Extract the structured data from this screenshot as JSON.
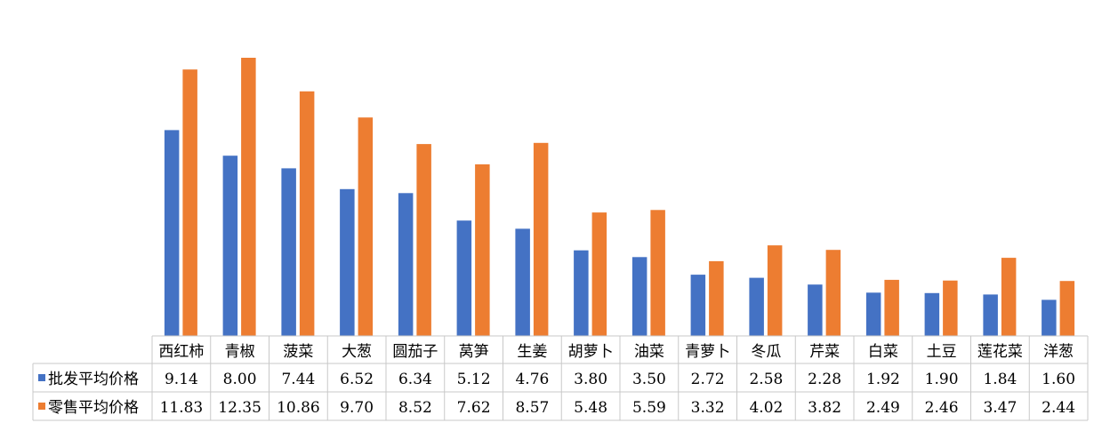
{
  "chart_data": {
    "type": "bar",
    "title": "",
    "xlabel": "",
    "ylabel": "",
    "ylim": [
      0,
      12.35
    ],
    "grid": false,
    "legend": "table-left",
    "categories": [
      "西红柿",
      "青椒",
      "菠菜",
      "大葱",
      "圆茄子",
      "莴笋",
      "生姜",
      "胡萝卜",
      "油菜",
      "青萝卜",
      "冬瓜",
      "芹菜",
      "白菜",
      "土豆",
      "莲花菜",
      "洋葱"
    ],
    "series": [
      {
        "name": "批发平均价格",
        "color": "#4472c4",
        "values": [
          9.14,
          8.0,
          7.44,
          6.52,
          6.34,
          5.12,
          4.76,
          3.8,
          3.5,
          2.72,
          2.58,
          2.28,
          1.92,
          1.9,
          1.84,
          1.6
        ],
        "labels": [
          "9.14",
          "8.00",
          "7.44",
          "6.52",
          "6.34",
          "5.12",
          "4.76",
          "3.80",
          "3.50",
          "2.72",
          "2.58",
          "2.28",
          "1.92",
          "1.90",
          "1.84",
          "1.60"
        ]
      },
      {
        "name": "零售平均价格",
        "color": "#ed7d31",
        "values": [
          11.83,
          12.35,
          10.86,
          9.7,
          8.52,
          7.62,
          8.57,
          5.48,
          5.59,
          3.32,
          4.02,
          3.82,
          2.49,
          2.46,
          3.47,
          2.44
        ],
        "labels": [
          "11.83",
          "12.35",
          "10.86",
          "9.70",
          "8.52",
          "7.62",
          "8.57",
          "5.48",
          "5.59",
          "3.32",
          "4.02",
          "3.82",
          "2.49",
          "2.46",
          "3.47",
          "2.44"
        ]
      }
    ]
  }
}
